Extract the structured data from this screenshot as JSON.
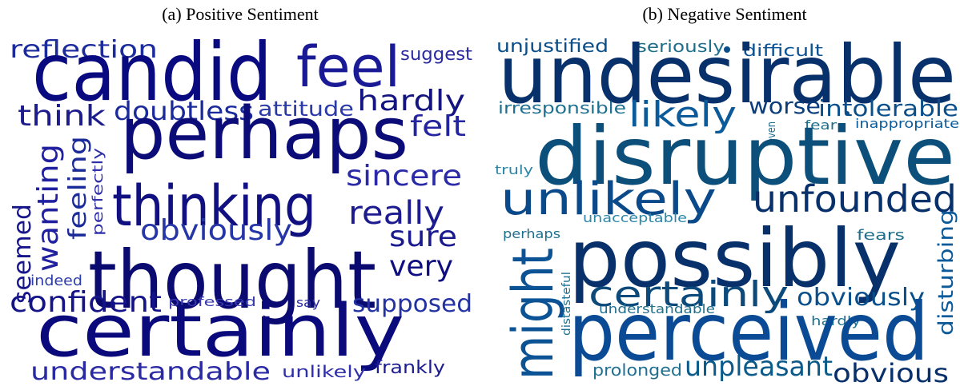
{
  "panels": [
    {
      "title": "(a) Positive Sentiment",
      "words": [
        "reflection",
        "candid",
        "feel",
        "suggest",
        "think",
        "doubtless",
        "attitude",
        "hardly",
        "perhaps",
        "felt",
        "thinking",
        "sincere",
        "really",
        "obviously",
        "sure",
        "very",
        "thought",
        "confident",
        "supposed",
        "professed",
        "say",
        "certainly",
        "understandable",
        "unlikely",
        "frankly",
        "indeed",
        "seemed",
        "wanting",
        "feeling",
        "perfectly"
      ]
    },
    {
      "title": "(b) Negative Sentiment",
      "words": [
        "unjustified",
        "seriously",
        "difficult",
        "undesirable",
        "irresponsible",
        "likely",
        "worse",
        "intolerable",
        "fear",
        "inappropriate",
        "even",
        "disruptive",
        "truly",
        "unlikely",
        "unfounded",
        "unacceptable",
        "fears",
        "possibly",
        "perhaps",
        "might",
        "distasteful",
        "disturbing",
        "certainly",
        "obviously",
        "hardly",
        "understandable",
        "perceived",
        "prolonged",
        "unpleasant",
        "obvious"
      ]
    }
  ]
}
